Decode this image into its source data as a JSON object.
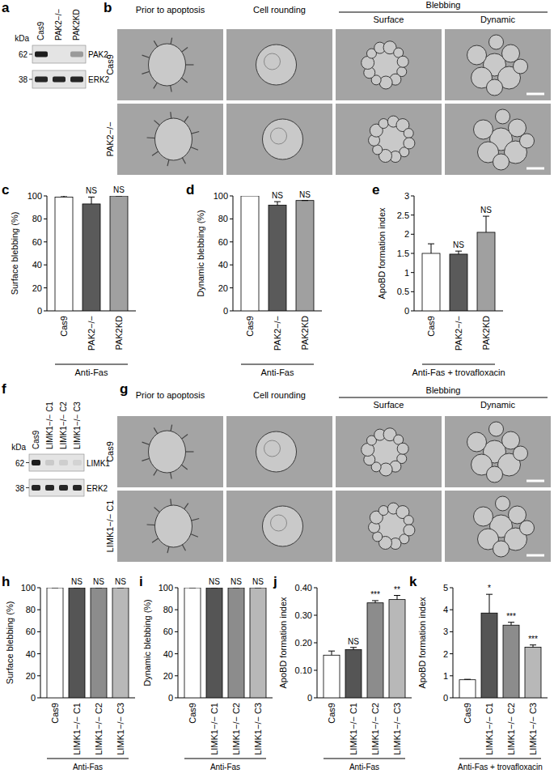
{
  "blots": [
    {
      "panel_label": "a",
      "unit": "kDa",
      "markers": [
        62,
        38
      ],
      "lanes": [
        "Cas9",
        "PAK2−/−",
        "PAK2KD"
      ],
      "bands": [
        "PAK2",
        "ERK2"
      ]
    },
    {
      "panel_label": "f",
      "unit": "kDa",
      "markers": [
        62,
        38
      ],
      "lanes": [
        "Cas9",
        "LIMK1−/− C1",
        "LIMK1−/− C2",
        "LIMK1−/− C3"
      ],
      "bands": [
        "LIMK1",
        "ERK2"
      ]
    }
  ],
  "micrographs": [
    {
      "panel_label": "b",
      "columns": [
        "Prior to apoptosis",
        "Cell rounding"
      ],
      "group": "Blebbing",
      "group_columns": [
        "Surface",
        "Dynamic"
      ],
      "rows": [
        "Cas9",
        "PAK2−/−"
      ]
    },
    {
      "panel_label": "g",
      "columns": [
        "Prior to apoptosis",
        "Cell rounding"
      ],
      "group": "Blebbing",
      "group_columns": [
        "Surface",
        "Dynamic"
      ],
      "rows": [
        "Cas9",
        "LIMK1−/− C1"
      ]
    }
  ],
  "chart_data": [
    {
      "type": "bar",
      "panel_label": "c",
      "y_label": "Surface blebbing (%)",
      "x_label": "Anti-Fas",
      "categories": [
        "Cas9",
        "PAK2−/−",
        "PAK2KD"
      ],
      "values": [
        99,
        93,
        100
      ],
      "errors": [
        1,
        6,
        0
      ],
      "significance": [
        null,
        "NS",
        "NS"
      ],
      "colors": [
        "#ffffff",
        "#5a5a5a",
        "#a0a0a0"
      ],
      "ylim": [
        0,
        100
      ],
      "yticks": [
        0,
        20,
        40,
        60,
        80,
        100
      ]
    },
    {
      "type": "bar",
      "panel_label": "d",
      "y_label": "Dynamic blebbing (%)",
      "x_label": "Anti-Fas",
      "categories": [
        "Cas9",
        "PAK2−/−",
        "PAK2KD"
      ],
      "values": [
        100,
        92,
        96
      ],
      "errors": [
        0.5,
        3,
        0
      ],
      "significance": [
        null,
        "NS",
        "NS"
      ],
      "colors": [
        "#ffffff",
        "#5a5a5a",
        "#a0a0a0"
      ],
      "ylim": [
        0,
        100
      ],
      "yticks": [
        0,
        20,
        40,
        60,
        80,
        100
      ]
    },
    {
      "type": "bar",
      "panel_label": "e",
      "y_label": "ApoBD formation index",
      "x_label": "Anti-Fas + trovafloxacin",
      "categories": [
        "Cas9",
        "PAK2−/−",
        "PAK2KD"
      ],
      "values": [
        1.5,
        1.48,
        2.05
      ],
      "errors": [
        0.25,
        0.08,
        0.42
      ],
      "significance": [
        null,
        "NS",
        "NS"
      ],
      "colors": [
        "#ffffff",
        "#5a5a5a",
        "#a0a0a0"
      ],
      "ylim": [
        0,
        3
      ],
      "yticks": [
        0,
        0.5,
        1,
        1.5,
        2,
        2.5,
        3
      ]
    },
    {
      "type": "bar",
      "panel_label": "h",
      "y_label": "Surface blebbing (%)",
      "x_label": "Anti-Fas",
      "categories": [
        "Cas9",
        "LIMK1−/− C1",
        "LIMK1−/− C2",
        "LIMK1−/− C3"
      ],
      "values": [
        100,
        100,
        100,
        100
      ],
      "errors": [
        0,
        0,
        0,
        0
      ],
      "significance": [
        null,
        "NS",
        "NS",
        "NS"
      ],
      "colors": [
        "#ffffff",
        "#555555",
        "#8c8c8c",
        "#b8b8b8"
      ],
      "ylim": [
        0,
        100
      ],
      "yticks": [
        0,
        20,
        40,
        60,
        80,
        100
      ]
    },
    {
      "type": "bar",
      "panel_label": "i",
      "y_label": "Dynamic blebbing (%)",
      "x_label": "Anti-Fas",
      "categories": [
        "Cas9",
        "LIMK1−/− C1",
        "LIMK1−/− C2",
        "LIMK1−/− C3"
      ],
      "values": [
        100,
        100,
        100,
        100
      ],
      "errors": [
        0,
        0,
        0,
        0
      ],
      "significance": [
        null,
        "NS",
        "NS",
        "NS"
      ],
      "colors": [
        "#ffffff",
        "#555555",
        "#8c8c8c",
        "#b8b8b8"
      ],
      "ylim": [
        0,
        100
      ],
      "yticks": [
        0,
        20,
        40,
        60,
        80,
        100
      ]
    },
    {
      "type": "bar",
      "panel_label": "j",
      "y_label": "ApoBD formation index",
      "x_label": "Anti-Fas",
      "categories": [
        "Cas9",
        "LIMK1−/− C1",
        "LIMK1−/− C2",
        "LIMK1−/− C3"
      ],
      "values": [
        0.155,
        0.175,
        0.345,
        0.357
      ],
      "errors": [
        0.015,
        0.008,
        0.008,
        0.015
      ],
      "significance": [
        null,
        "NS",
        "***",
        "**"
      ],
      "colors": [
        "#ffffff",
        "#555555",
        "#8c8c8c",
        "#b8b8b8"
      ],
      "ylim": [
        0,
        0.4
      ],
      "yticks": [
        0,
        {
          "value": 0.1,
          "label": "0.10"
        },
        {
          "value": 0.2,
          "label": "0.20"
        },
        {
          "value": 0.3,
          "label": "0.30"
        },
        {
          "value": 0.4,
          "label": "0.40"
        }
      ]
    },
    {
      "type": "bar",
      "panel_label": "k",
      "y_label": "ApoBD formation index",
      "x_label": "Anti-Fas + trovafloxacin",
      "categories": [
        "Cas9",
        "LIMK1−/− C1",
        "LIMK1−/− C2",
        "LIMK1−/− C3"
      ],
      "values": [
        0.82,
        3.85,
        3.3,
        2.3
      ],
      "errors": [
        0.02,
        0.85,
        0.13,
        0.1
      ],
      "significance": [
        null,
        "*",
        "***",
        "***"
      ],
      "colors": [
        "#ffffff",
        "#555555",
        "#8c8c8c",
        "#b8b8b8"
      ],
      "ylim": [
        0,
        5
      ],
      "yticks": [
        0,
        1,
        2,
        3,
        4,
        5
      ]
    }
  ]
}
